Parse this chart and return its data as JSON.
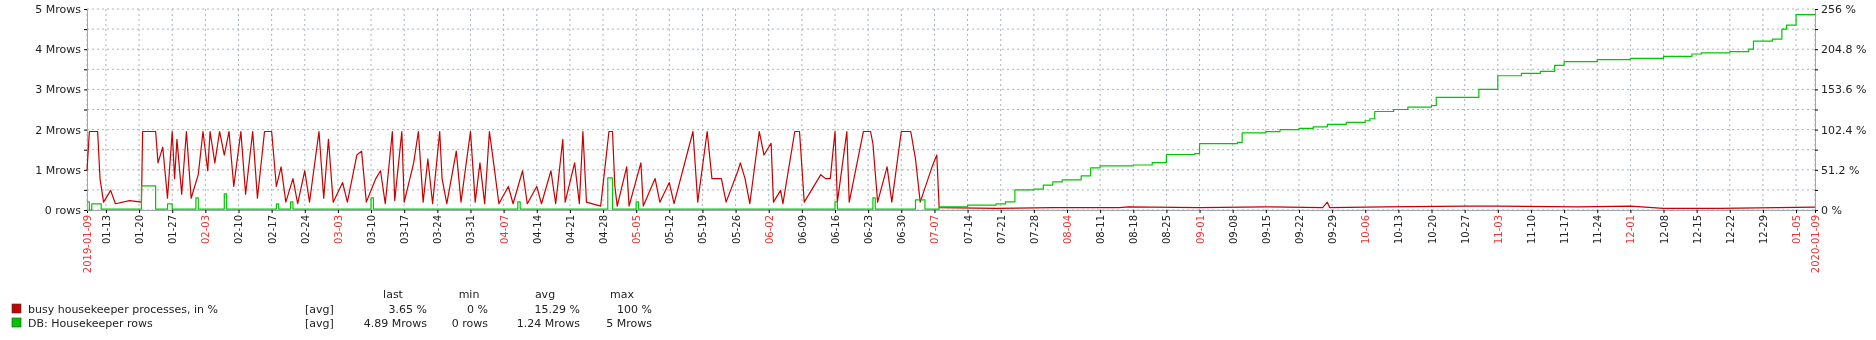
{
  "chart_data": {
    "type": "line",
    "legend": "bottom",
    "grid": true,
    "xlim": [
      "2019-01-09",
      "2020-01-09"
    ],
    "xticks": [
      {
        "value": "2019-01-09",
        "label": "2019-01-09"
      },
      {
        "value": "2019-01-13",
        "label": "01-13"
      },
      {
        "value": "2019-01-20",
        "label": "01-20"
      },
      {
        "value": "2019-01-27",
        "label": "01-27"
      },
      {
        "value": "2019-02-03",
        "label": "02-03"
      },
      {
        "value": "2019-02-10",
        "label": "02-10"
      },
      {
        "value": "2019-02-17",
        "label": "02-17"
      },
      {
        "value": "2019-02-24",
        "label": "02-24"
      },
      {
        "value": "2019-03-03",
        "label": "03-03"
      },
      {
        "value": "2019-03-10",
        "label": "03-10"
      },
      {
        "value": "2019-03-17",
        "label": "03-17"
      },
      {
        "value": "2019-03-24",
        "label": "03-24"
      },
      {
        "value": "2019-03-31",
        "label": "03-31"
      },
      {
        "value": "2019-04-07",
        "label": "04-07"
      },
      {
        "value": "2019-04-14",
        "label": "04-14"
      },
      {
        "value": "2019-04-21",
        "label": "04-21"
      },
      {
        "value": "2019-04-28",
        "label": "04-28"
      },
      {
        "value": "2019-05-05",
        "label": "05-05"
      },
      {
        "value": "2019-05-12",
        "label": "05-12"
      },
      {
        "value": "2019-05-19",
        "label": "05-19"
      },
      {
        "value": "2019-05-26",
        "label": "05-26"
      },
      {
        "value": "2019-06-02",
        "label": "06-02"
      },
      {
        "value": "2019-06-09",
        "label": "06-09"
      },
      {
        "value": "2019-06-16",
        "label": "06-16"
      },
      {
        "value": "2019-06-23",
        "label": "06-23"
      },
      {
        "value": "2019-06-30",
        "label": "06-30"
      },
      {
        "value": "2019-07-07",
        "label": "07-07"
      },
      {
        "value": "2019-07-14",
        "label": "07-14"
      },
      {
        "value": "2019-07-21",
        "label": "07-21"
      },
      {
        "value": "2019-07-28",
        "label": "07-28"
      },
      {
        "value": "2019-08-04",
        "label": "08-04"
      },
      {
        "value": "2019-08-11",
        "label": "08-11"
      },
      {
        "value": "2019-08-18",
        "label": "08-18"
      },
      {
        "value": "2019-08-25",
        "label": "08-25"
      },
      {
        "value": "2019-09-01",
        "label": "09-01"
      },
      {
        "value": "2019-09-08",
        "label": "09-08"
      },
      {
        "value": "2019-09-15",
        "label": "09-15"
      },
      {
        "value": "2019-09-22",
        "label": "09-22"
      },
      {
        "value": "2019-09-29",
        "label": "09-29"
      },
      {
        "value": "2019-10-06",
        "label": "10-06"
      },
      {
        "value": "2019-10-13",
        "label": "10-13"
      },
      {
        "value": "2019-10-20",
        "label": "10-20"
      },
      {
        "value": "2019-10-27",
        "label": "10-27"
      },
      {
        "value": "2019-11-03",
        "label": "11-03"
      },
      {
        "value": "2019-11-10",
        "label": "11-10"
      },
      {
        "value": "2019-11-17",
        "label": "11-17"
      },
      {
        "value": "2019-11-24",
        "label": "11-24"
      },
      {
        "value": "2019-12-01",
        "label": "12-01"
      },
      {
        "value": "2019-12-08",
        "label": "12-08"
      },
      {
        "value": "2019-12-15",
        "label": "12-15"
      },
      {
        "value": "2019-12-22",
        "label": "12-22"
      },
      {
        "value": "2019-12-29",
        "label": "12-29"
      },
      {
        "value": "2020-01-05",
        "label": "01-05"
      },
      {
        "value": "2020-01-09",
        "label": "2020-01-09"
      }
    ],
    "ylim": [
      0,
      5
    ],
    "yticks": [
      {
        "value": 0,
        "label": "0 rows"
      },
      {
        "value": 0.5,
        "label": null
      },
      {
        "value": 1,
        "label": "1 Mrows"
      },
      {
        "value": 1.5,
        "label": null
      },
      {
        "value": 2,
        "label": "2 Mrows"
      },
      {
        "value": 2.5,
        "label": null
      },
      {
        "value": 3,
        "label": "3 Mrows"
      },
      {
        "value": 3.5,
        "label": null
      },
      {
        "value": 4,
        "label": "4 Mrows"
      },
      {
        "value": 4.5,
        "label": null
      },
      {
        "value": 5,
        "label": "5 Mrows"
      }
    ],
    "y2lim": [
      0,
      256
    ],
    "y2ticks": [
      {
        "value": 0,
        "label": "0 %"
      },
      {
        "value": 25.6,
        "label": null
      },
      {
        "value": 51.2,
        "label": "51.2 %"
      },
      {
        "value": 76.8,
        "label": null
      },
      {
        "value": 102.4,
        "label": "102.4 %"
      },
      {
        "value": 128,
        "label": null
      },
      {
        "value": 153.6,
        "label": "153.6 %"
      },
      {
        "value": 179.2,
        "label": null
      },
      {
        "value": 204.8,
        "label": "204.8 %"
      },
      {
        "value": 230.4,
        "label": null
      },
      {
        "value": 256,
        "label": "256 %"
      }
    ],
    "annotations": [
      "last",
      "min",
      "avg",
      "max",
      "[avg]",
      "3.65 %",
      "0 %",
      "15.29 %",
      "100 %",
      "[avg]",
      "4.89 Mrows",
      "0 rows",
      "1.24 Mrows",
      "5 Mrows"
    ],
    "series": [
      {
        "name": "busy housekeeper processes, in %",
        "color": "#c80000",
        "axis": "y2",
        "x": [
          "2019-01-09",
          "2019-01-09T12:00",
          "2019-01-11T06:00",
          "2019-01-11T18:00",
          "2019-01-12T12:00",
          "2019-01-14",
          "2019-01-15",
          "2019-01-18",
          "2019-01-20T12:00",
          "2019-01-20T18:00",
          "2019-01-23T12:00",
          "2019-01-24",
          "2019-01-25",
          "2019-01-26",
          "2019-01-27",
          "2019-01-27T12:00",
          "2019-01-28",
          "2019-01-29",
          "2019-01-30",
          "2019-01-31",
          "2019-02-01T12:00",
          "2019-02-02T12:00",
          "2019-02-03T12:00",
          "2019-02-04",
          "2019-02-05",
          "2019-02-06",
          "2019-02-07",
          "2019-02-08",
          "2019-02-09",
          "2019-02-10T12:00",
          "2019-02-11T12:00",
          "2019-02-13",
          "2019-02-14",
          "2019-02-15T12:00",
          "2019-02-17",
          "2019-02-18",
          "2019-02-19",
          "2019-02-20",
          "2019-02-21T12:00",
          "2019-02-22T12:00",
          "2019-02-24",
          "2019-02-25",
          "2019-02-27",
          "2019-02-28",
          "2019-03-01",
          "2019-03-02",
          "2019-03-04",
          "2019-03-05",
          "2019-03-07",
          "2019-03-08",
          "2019-03-09",
          "2019-03-11",
          "2019-03-12",
          "2019-03-13",
          "2019-03-14T12:00",
          "2019-03-15",
          "2019-03-16T12:00",
          "2019-03-17",
          "2019-03-19",
          "2019-03-20",
          "2019-03-21",
          "2019-03-22",
          "2019-03-23",
          "2019-03-24T12:00",
          "2019-03-25",
          "2019-03-26",
          "2019-03-28",
          "2019-03-29",
          "2019-03-31",
          "2019-04-01",
          "2019-04-02",
          "2019-04-03",
          "2019-04-04",
          "2019-04-05",
          "2019-04-06",
          "2019-04-08",
          "2019-04-09",
          "2019-04-11",
          "2019-04-12",
          "2019-04-14",
          "2019-04-15",
          "2019-04-17",
          "2019-04-18",
          "2019-04-19T12:00",
          "2019-04-20",
          "2019-04-22",
          "2019-04-23",
          "2019-04-23T18:00",
          "2019-04-24T12:00",
          "2019-04-27T12:00",
          "2019-04-29T06:00",
          "2019-04-30",
          "2019-04-30T12:00",
          "2019-05-01",
          "2019-05-03",
          "2019-05-03T12:00",
          "2019-05-06",
          "2019-05-06T12:00",
          "2019-05-09",
          "2019-05-10",
          "2019-05-12",
          "2019-05-13",
          "2019-05-17",
          "2019-05-18",
          "2019-05-20",
          "2019-05-21",
          "2019-05-23",
          "2019-05-24",
          "2019-05-26T12:00",
          "2019-05-27",
          "2019-05-28",
          "2019-05-29",
          "2019-05-31",
          "2019-06-01",
          "2019-06-02T12:00",
          "2019-06-03",
          "2019-06-04T12:00",
          "2019-06-05",
          "2019-06-07T12:00",
          "2019-06-08T12:00",
          "2019-06-09T12:00",
          "2019-06-13",
          "2019-06-14",
          "2019-06-15",
          "2019-06-16",
          "2019-06-16T12:00",
          "2019-06-18T12:00",
          "2019-06-19",
          "2019-06-22",
          "2019-06-23T12:00",
          "2019-06-24",
          "2019-06-25",
          "2019-06-27",
          "2019-06-28",
          "2019-06-30",
          "2019-07-02",
          "2019-07-03",
          "2019-07-04",
          "2019-07-06T12:00",
          "2019-07-07T12:00",
          "2019-07-08",
          "2019-07-20",
          "2019-08-01",
          "2019-08-15",
          "2019-08-17",
          "2019-09-01",
          "2019-09-15",
          "2019-09-27",
          "2019-09-28",
          "2019-09-28T12:00",
          "2019-10-10",
          "2019-10-27",
          "2019-11-03",
          "2019-11-20",
          "2019-12-01",
          "2019-12-08",
          "2019-12-20",
          "2020-01-01",
          "2020-01-09"
        ],
        "values": [
          50,
          100,
          100,
          40,
          10,
          25,
          8,
          12,
          10,
          100,
          100,
          60,
          80,
          15,
          100,
          40,
          90,
          20,
          100,
          15,
          45,
          100,
          50,
          100,
          60,
          100,
          70,
          100,
          30,
          100,
          20,
          100,
          15,
          100,
          100,
          30,
          55,
          10,
          40,
          8,
          50,
          10,
          100,
          15,
          90,
          10,
          35,
          10,
          70,
          75,
          10,
          40,
          50,
          8,
          100,
          12,
          100,
          10,
          60,
          100,
          10,
          65,
          8,
          100,
          40,
          8,
          75,
          10,
          100,
          10,
          60,
          8,
          100,
          55,
          8,
          30,
          8,
          50,
          8,
          30,
          8,
          50,
          8,
          90,
          10,
          60,
          8,
          100,
          10,
          5,
          100,
          100,
          30,
          5,
          55,
          5,
          60,
          5,
          40,
          10,
          35,
          8,
          100,
          10,
          100,
          40,
          40,
          10,
          50,
          60,
          40,
          8,
          100,
          70,
          85,
          10,
          25,
          8,
          100,
          100,
          10,
          45,
          40,
          40,
          100,
          10,
          100,
          10,
          100,
          100,
          85,
          10,
          55,
          10,
          100,
          100,
          65,
          10,
          55,
          70,
          3,
          2,
          3,
          3,
          4,
          3,
          4,
          3,
          10,
          3,
          4,
          5,
          5,
          4,
          5,
          2,
          2,
          3,
          3.65
        ]
      },
      {
        "name": "DB: Housekeeper rows",
        "color": "#00c800",
        "type": "step",
        "x": [
          "2019-01-09",
          "2019-01-09T12:00",
          "2019-01-10",
          "2019-01-12",
          "2019-01-20T12:00",
          "2019-01-23T12:00",
          "2019-01-26",
          "2019-01-27",
          "2019-02-01",
          "2019-02-01T12:00",
          "2019-02-07",
          "2019-02-07T12:00",
          "2019-02-18",
          "2019-02-18T12:00",
          "2019-02-21",
          "2019-02-21T12:00",
          "2019-03-10",
          "2019-03-10T12:00",
          "2019-04-10",
          "2019-04-10T12:00",
          "2019-04-29",
          "2019-04-30",
          "2019-05-05",
          "2019-05-05T12:00",
          "2019-06-16",
          "2019-06-16T12:00",
          "2019-06-24",
          "2019-06-24T12:00",
          "2019-07-03",
          "2019-07-05",
          "2019-07-08",
          "2019-07-14",
          "2019-07-20",
          "2019-07-22",
          "2019-07-24",
          "2019-07-28",
          "2019-07-30",
          "2019-08-01",
          "2019-08-03",
          "2019-08-07",
          "2019-08-09",
          "2019-08-11",
          "2019-08-18",
          "2019-08-22",
          "2019-08-25",
          "2019-08-31",
          "2019-09-01",
          "2019-09-09",
          "2019-09-10",
          "2019-09-15",
          "2019-09-18",
          "2019-09-22",
          "2019-09-25",
          "2019-09-28",
          "2019-10-02",
          "2019-10-06",
          "2019-10-07",
          "2019-10-08",
          "2019-10-12",
          "2019-10-15",
          "2019-10-20",
          "2019-10-21",
          "2019-10-30",
          "2019-11-03",
          "2019-11-08",
          "2019-11-12",
          "2019-11-15",
          "2019-11-17",
          "2019-11-24",
          "2019-12-01",
          "2019-12-08",
          "2019-12-14",
          "2019-12-16",
          "2019-12-22",
          "2019-12-26",
          "2019-12-27",
          "2019-12-31",
          "2020-01-02",
          "2020-01-03",
          "2020-01-05",
          "2020-01-09"
        ],
        "values": [
          0.2,
          0,
          0.15,
          0.02,
          0.6,
          0.02,
          0.15,
          0.02,
          0.3,
          0.02,
          0.4,
          0.02,
          0.15,
          0.02,
          0.2,
          0.02,
          0.3,
          0.02,
          0.2,
          0.02,
          0.8,
          0.02,
          0.2,
          0.02,
          0.2,
          0.02,
          0.3,
          0.02,
          0.25,
          0.02,
          0.08,
          0.12,
          0.15,
          0.2,
          0.5,
          0.52,
          0.62,
          0.7,
          0.75,
          0.85,
          1.05,
          1.1,
          1.12,
          1.18,
          1.38,
          1.4,
          1.65,
          1.68,
          1.92,
          1.95,
          2.0,
          2.03,
          2.07,
          2.13,
          2.18,
          2.22,
          2.27,
          2.45,
          2.5,
          2.56,
          2.6,
          2.8,
          3.0,
          3.34,
          3.4,
          3.45,
          3.6,
          3.69,
          3.74,
          3.77,
          3.82,
          3.88,
          3.91,
          3.94,
          4.0,
          4.2,
          4.25,
          4.5,
          4.6,
          4.86,
          4.88
        ]
      }
    ]
  }
}
